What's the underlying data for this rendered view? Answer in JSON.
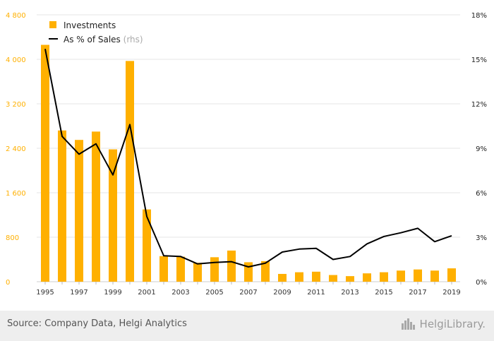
{
  "chart_data": {
    "type": "bar",
    "x": [
      1995,
      1996,
      1997,
      1998,
      1999,
      2000,
      2001,
      2002,
      2003,
      2004,
      2005,
      2006,
      2007,
      2008,
      2009,
      2010,
      2011,
      2012,
      2013,
      2014,
      2015,
      2016,
      2017,
      2018,
      2019
    ],
    "x_tick_labels": [
      "1995",
      "1997",
      "1999",
      "2001",
      "2003",
      "2005",
      "2007",
      "2009",
      "2011",
      "2013",
      "2015",
      "2017",
      "2019"
    ],
    "series": [
      {
        "name": "Investments",
        "kind": "bar",
        "axis": "left",
        "color": "#ffb000",
        "values": [
          4260,
          2720,
          2550,
          2700,
          2380,
          3970,
          1300,
          460,
          450,
          340,
          440,
          560,
          350,
          370,
          140,
          170,
          180,
          120,
          100,
          150,
          170,
          200,
          220,
          200,
          240
        ]
      },
      {
        "name": "As % of Sales",
        "kind": "line",
        "axis": "right",
        "color": "#000000",
        "values": [
          15.7,
          9.8,
          8.6,
          9.3,
          7.2,
          10.6,
          4.4,
          1.75,
          1.7,
          1.2,
          1.3,
          1.35,
          1.0,
          1.25,
          2.0,
          2.2,
          2.25,
          1.5,
          1.7,
          2.55,
          3.05,
          3.3,
          3.6,
          2.7,
          3.1
        ]
      }
    ],
    "y_left": {
      "min": 0,
      "max": 4800,
      "ticks": [
        "0",
        "800",
        "1 600",
        "2 400",
        "3 200",
        "4 000",
        "4 800"
      ],
      "color": "#ffb000"
    },
    "y_right": {
      "min": 0,
      "max": 18,
      "ticks": [
        "0%",
        "3%",
        "6%",
        "9%",
        "12%",
        "15%",
        "18%"
      ]
    },
    "legend": [
      {
        "label": "Investments",
        "color": "#ffb000",
        "marker": "square"
      },
      {
        "label": "As % of Sales",
        "suffix": "(rhs)",
        "color": "#000000",
        "marker": "line"
      }
    ],
    "legend_position": "top-left",
    "grid": true
  },
  "footer": {
    "source": "Source: Company Data, Helgi Analytics",
    "logo_text": "HelgiLibrary."
  }
}
